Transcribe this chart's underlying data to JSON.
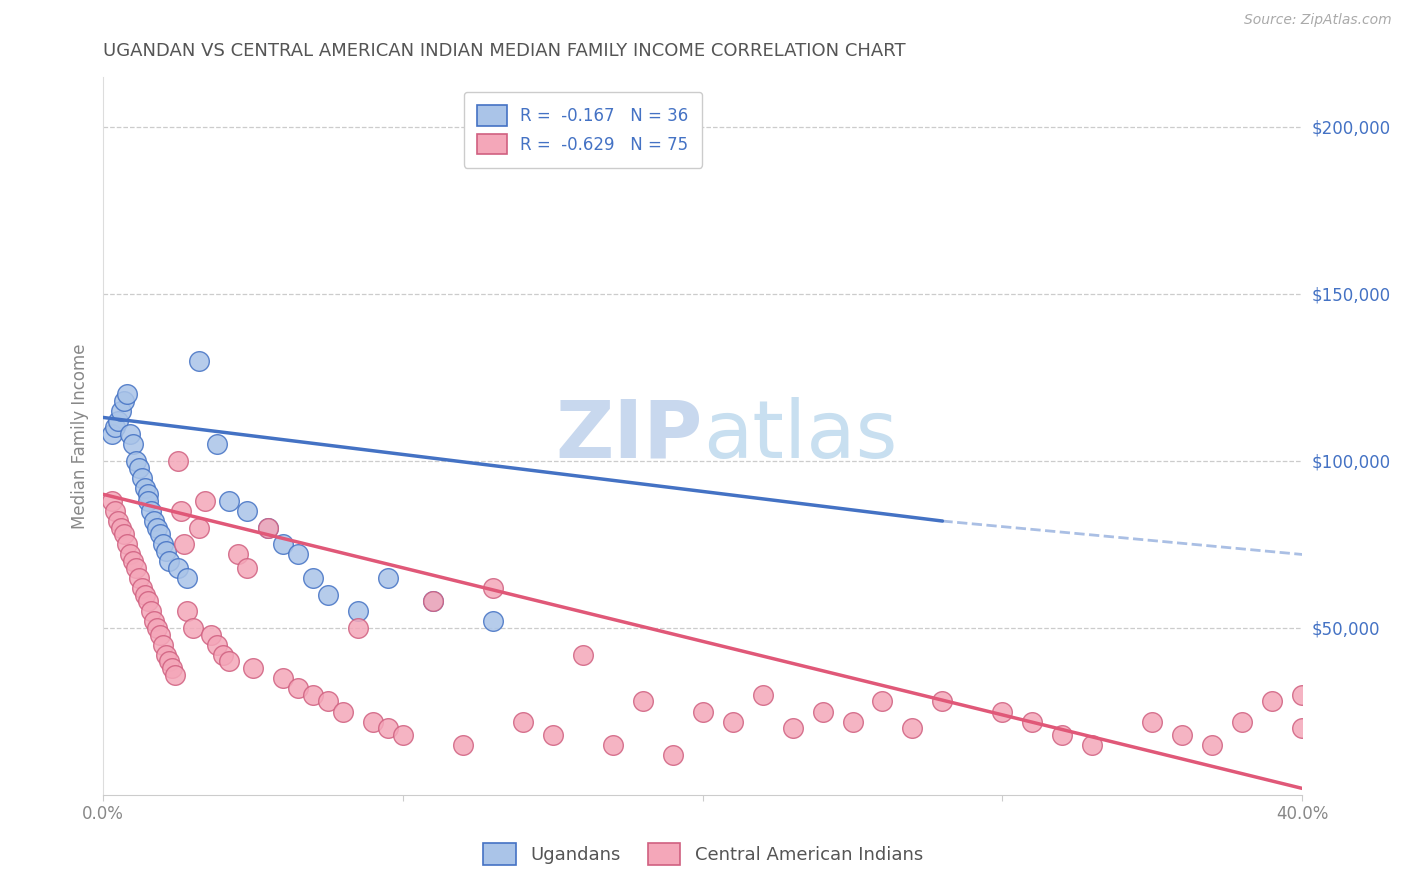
{
  "title": "UGANDAN VS CENTRAL AMERICAN INDIAN MEDIAN FAMILY INCOME CORRELATION CHART",
  "source": "Source: ZipAtlas.com",
  "ylabel": "Median Family Income",
  "ytick_labels": [
    "$50,000",
    "$100,000",
    "$150,000",
    "$200,000"
  ],
  "ytick_values": [
    50000,
    100000,
    150000,
    200000
  ],
  "xlim": [
    0.0,
    0.4
  ],
  "ylim": [
    0,
    215000
  ],
  "legend_ugandan": "R =  -0.167   N = 36",
  "legend_central": "R =  -0.629   N = 75",
  "legend_label_ugandan": "Ugandans",
  "legend_label_central": "Central American Indians",
  "color_ugandan": "#aac4e8",
  "color_central": "#f4a7b9",
  "color_line_ugandan": "#4472c4",
  "color_line_central": "#e05878",
  "watermark_zip": "ZIP",
  "watermark_atlas": "atlas",
  "title_color": "#555555",
  "axis_label_color": "#4472c4",
  "ugandan_x": [
    0.003,
    0.004,
    0.005,
    0.006,
    0.007,
    0.008,
    0.009,
    0.01,
    0.011,
    0.012,
    0.013,
    0.014,
    0.015,
    0.015,
    0.016,
    0.017,
    0.018,
    0.019,
    0.02,
    0.021,
    0.022,
    0.025,
    0.028,
    0.032,
    0.038,
    0.042,
    0.048,
    0.055,
    0.06,
    0.065,
    0.07,
    0.075,
    0.085,
    0.095,
    0.11,
    0.13
  ],
  "ugandan_y": [
    108000,
    110000,
    112000,
    115000,
    118000,
    120000,
    108000,
    105000,
    100000,
    98000,
    95000,
    92000,
    90000,
    88000,
    85000,
    82000,
    80000,
    78000,
    75000,
    73000,
    70000,
    68000,
    65000,
    130000,
    105000,
    88000,
    85000,
    80000,
    75000,
    72000,
    65000,
    60000,
    55000,
    65000,
    58000,
    52000
  ],
  "central_x": [
    0.003,
    0.004,
    0.005,
    0.006,
    0.007,
    0.008,
    0.009,
    0.01,
    0.011,
    0.012,
    0.013,
    0.014,
    0.015,
    0.016,
    0.017,
    0.018,
    0.019,
    0.02,
    0.021,
    0.022,
    0.023,
    0.024,
    0.025,
    0.026,
    0.027,
    0.028,
    0.03,
    0.032,
    0.034,
    0.036,
    0.038,
    0.04,
    0.042,
    0.045,
    0.048,
    0.05,
    0.055,
    0.06,
    0.065,
    0.07,
    0.075,
    0.08,
    0.085,
    0.09,
    0.095,
    0.1,
    0.11,
    0.12,
    0.13,
    0.14,
    0.15,
    0.16,
    0.17,
    0.18,
    0.19,
    0.2,
    0.21,
    0.22,
    0.23,
    0.24,
    0.25,
    0.26,
    0.27,
    0.28,
    0.3,
    0.31,
    0.32,
    0.33,
    0.35,
    0.36,
    0.37,
    0.38,
    0.39,
    0.4,
    0.4
  ],
  "central_y": [
    88000,
    85000,
    82000,
    80000,
    78000,
    75000,
    72000,
    70000,
    68000,
    65000,
    62000,
    60000,
    58000,
    55000,
    52000,
    50000,
    48000,
    45000,
    42000,
    40000,
    38000,
    36000,
    100000,
    85000,
    75000,
    55000,
    50000,
    80000,
    88000,
    48000,
    45000,
    42000,
    40000,
    72000,
    68000,
    38000,
    80000,
    35000,
    32000,
    30000,
    28000,
    25000,
    50000,
    22000,
    20000,
    18000,
    58000,
    15000,
    62000,
    22000,
    18000,
    42000,
    15000,
    28000,
    12000,
    25000,
    22000,
    30000,
    20000,
    25000,
    22000,
    28000,
    20000,
    28000,
    25000,
    22000,
    18000,
    15000,
    22000,
    18000,
    15000,
    22000,
    28000,
    30000,
    20000
  ]
}
